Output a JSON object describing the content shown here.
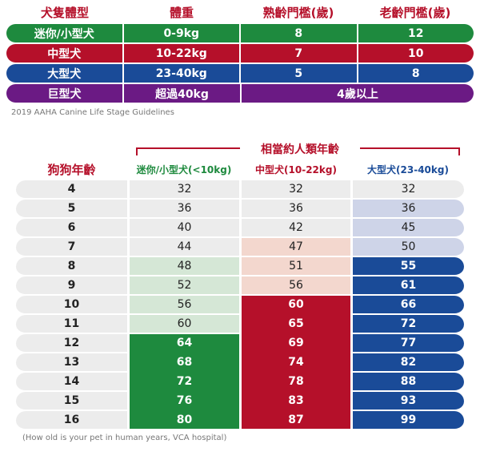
{
  "summary": {
    "headers": [
      "犬隻體型",
      "體重",
      "熟齡門檻(歲)",
      "老齡門檻(歲)"
    ],
    "rows": [
      {
        "size": "迷你/小型犬",
        "weight": "0-9kg",
        "mature": "8",
        "senior": "12",
        "color": "#1e8a3e"
      },
      {
        "size": "中型犬",
        "weight": "10-22kg",
        "mature": "7",
        "senior": "10",
        "color": "#b5102a"
      },
      {
        "size": "大型犬",
        "weight": "23-40kg",
        "mature": "5",
        "senior": "8",
        "color": "#1a4b98"
      },
      {
        "size": "巨型犬",
        "weight": "超過40kg",
        "combined": "4歲以上",
        "color": "#6b1a84"
      }
    ],
    "source": "2019 AAHA Canine Life Stage Guidelines"
  },
  "ages": {
    "group_title": "相當約人類年齡",
    "age_header": "狗狗年齡",
    "col_small": "迷你/小型犬(<10kg)",
    "col_medium": "中型犬(10-22kg)",
    "col_large": "大型犬(23-40kg)",
    "rows": [
      {
        "age": "4",
        "small": "32",
        "medium": "32",
        "large": "32",
        "ts": "gray",
        "tm": "gray",
        "tl": "gray"
      },
      {
        "age": "5",
        "small": "36",
        "medium": "36",
        "large": "36",
        "ts": "gray",
        "tm": "gray",
        "tl": "lv"
      },
      {
        "age": "6",
        "small": "40",
        "medium": "42",
        "large": "45",
        "ts": "gray",
        "tm": "gray",
        "tl": "lv"
      },
      {
        "age": "7",
        "small": "44",
        "medium": "47",
        "large": "50",
        "ts": "gray",
        "tm": "pk",
        "tl": "lv"
      },
      {
        "age": "8",
        "small": "48",
        "medium": "51",
        "large": "55",
        "ts": "lg",
        "tm": "pk",
        "tl": "db"
      },
      {
        "age": "9",
        "small": "52",
        "medium": "56",
        "large": "61",
        "ts": "lg",
        "tm": "pk",
        "tl": "db"
      },
      {
        "age": "10",
        "small": "56",
        "medium": "60",
        "large": "66",
        "ts": "lg",
        "tm": "dr",
        "tl": "db"
      },
      {
        "age": "11",
        "small": "60",
        "medium": "65",
        "large": "72",
        "ts": "lg",
        "tm": "dr",
        "tl": "db"
      },
      {
        "age": "12",
        "small": "64",
        "medium": "69",
        "large": "77",
        "ts": "dg",
        "tm": "dr",
        "tl": "db"
      },
      {
        "age": "13",
        "small": "68",
        "medium": "74",
        "large": "82",
        "ts": "dg",
        "tm": "dr",
        "tl": "db"
      },
      {
        "age": "14",
        "small": "72",
        "medium": "78",
        "large": "88",
        "ts": "dg",
        "tm": "dr",
        "tl": "db"
      },
      {
        "age": "15",
        "small": "76",
        "medium": "83",
        "large": "93",
        "ts": "dg",
        "tm": "dr",
        "tl": "db"
      },
      {
        "age": "16",
        "small": "80",
        "medium": "87",
        "large": "99",
        "ts": "dg",
        "tm": "dr",
        "tl": "db"
      }
    ],
    "source": "(How old is your pet in human years, VCA hospital)"
  }
}
